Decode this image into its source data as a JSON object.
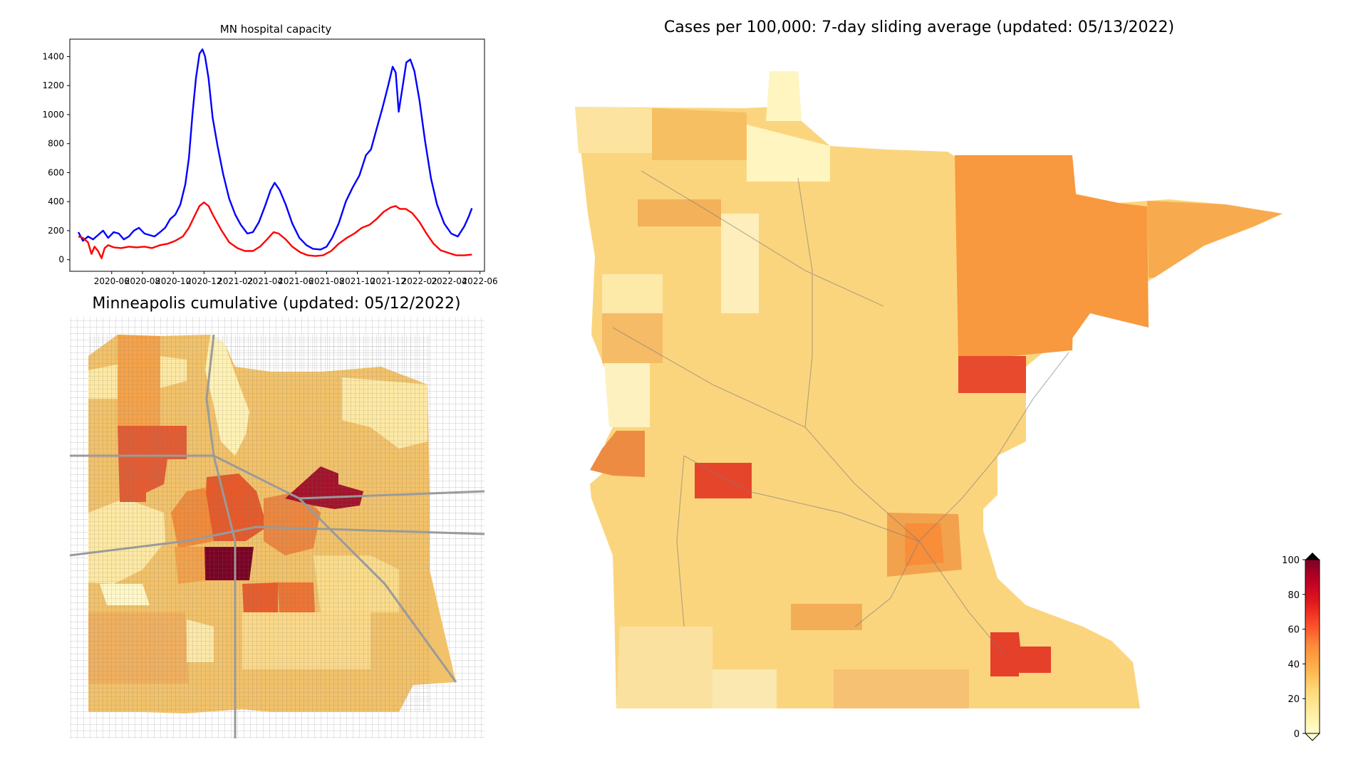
{
  "figure": {
    "hospital_chart": {
      "title": "MN hospital capacity",
      "chart_data": {
        "type": "line",
        "title": "MN hospital capacity",
        "xlabel": "",
        "ylabel": "",
        "ylim": [
          -80,
          1520
        ],
        "yticks": [
          0,
          200,
          400,
          600,
          800,
          1000,
          1200,
          1400
        ],
        "xlim": [
          "2020-03-10",
          "2022-06-10"
        ],
        "xticks": [
          "2020-06",
          "2020-08",
          "2020-10",
          "2020-12",
          "2021-02",
          "2021-04",
          "2021-06",
          "2021-08",
          "2021-10",
          "2021-12",
          "2022-02",
          "2022-04",
          "2022-06"
        ],
        "grid": false,
        "legend": "none",
        "series": [
          {
            "color": "#0000ff",
            "points": [
              [
                "2020-03-27",
                190
              ],
              [
                "2020-04-05",
                130
              ],
              [
                "2020-04-15",
                160
              ],
              [
                "2020-04-25",
                140
              ],
              [
                "2020-05-05",
                170
              ],
              [
                "2020-05-15",
                200
              ],
              [
                "2020-05-25",
                150
              ],
              [
                "2020-06-05",
                190
              ],
              [
                "2020-06-15",
                180
              ],
              [
                "2020-06-25",
                140
              ],
              [
                "2020-07-05",
                160
              ],
              [
                "2020-07-15",
                200
              ],
              [
                "2020-07-25",
                220
              ],
              [
                "2020-08-05",
                180
              ],
              [
                "2020-08-15",
                170
              ],
              [
                "2020-08-25",
                160
              ],
              [
                "2020-09-05",
                190
              ],
              [
                "2020-09-15",
                220
              ],
              [
                "2020-09-25",
                280
              ],
              [
                "2020-10-05",
                310
              ],
              [
                "2020-10-15",
                380
              ],
              [
                "2020-10-25",
                520
              ],
              [
                "2020-11-01",
                700
              ],
              [
                "2020-11-08",
                1000
              ],
              [
                "2020-11-15",
                1250
              ],
              [
                "2020-11-22",
                1420
              ],
              [
                "2020-11-28",
                1450
              ],
              [
                "2020-12-03",
                1400
              ],
              [
                "2020-12-10",
                1250
              ],
              [
                "2020-12-18",
                980
              ],
              [
                "2020-12-28",
                780
              ],
              [
                "2021-01-08",
                590
              ],
              [
                "2021-01-20",
                420
              ],
              [
                "2021-02-01",
                310
              ],
              [
                "2021-02-12",
                240
              ],
              [
                "2021-02-25",
                180
              ],
              [
                "2021-03-08",
                190
              ],
              [
                "2021-03-20",
                260
              ],
              [
                "2021-04-01",
                370
              ],
              [
                "2021-04-12",
                480
              ],
              [
                "2021-04-20",
                530
              ],
              [
                "2021-04-30",
                480
              ],
              [
                "2021-05-12",
                380
              ],
              [
                "2021-05-25",
                250
              ],
              [
                "2021-06-08",
                150
              ],
              [
                "2021-06-22",
                100
              ],
              [
                "2021-07-05",
                75
              ],
              [
                "2021-07-20",
                70
              ],
              [
                "2021-08-01",
                90
              ],
              [
                "2021-08-12",
                150
              ],
              [
                "2021-08-25",
                250
              ],
              [
                "2021-09-08",
                400
              ],
              [
                "2021-09-22",
                500
              ],
              [
                "2021-10-05",
                580
              ],
              [
                "2021-10-18",
                720
              ],
              [
                "2021-10-28",
                760
              ],
              [
                "2021-11-08",
                900
              ],
              [
                "2021-11-20",
                1050
              ],
              [
                "2021-12-01",
                1200
              ],
              [
                "2021-12-10",
                1330
              ],
              [
                "2021-12-16",
                1290
              ],
              [
                "2021-12-22",
                1020
              ],
              [
                "2021-12-30",
                1200
              ],
              [
                "2022-01-06",
                1360
              ],
              [
                "2022-01-14",
                1380
              ],
              [
                "2022-01-22",
                1300
              ],
              [
                "2022-02-01",
                1100
              ],
              [
                "2022-02-12",
                820
              ],
              [
                "2022-02-24",
                560
              ],
              [
                "2022-03-08",
                380
              ],
              [
                "2022-03-22",
                250
              ],
              [
                "2022-04-05",
                180
              ],
              [
                "2022-04-18",
                160
              ],
              [
                "2022-05-01",
                230
              ],
              [
                "2022-05-10",
                300
              ],
              [
                "2022-05-16",
                355
              ]
            ]
          },
          {
            "color": "#ff0000",
            "points": [
              [
                "2020-03-27",
                160
              ],
              [
                "2020-04-05",
                150
              ],
              [
                "2020-04-15",
                120
              ],
              [
                "2020-04-22",
                40
              ],
              [
                "2020-04-28",
                90
              ],
              [
                "2020-05-05",
                60
              ],
              [
                "2020-05-12",
                10
              ],
              [
                "2020-05-18",
                80
              ],
              [
                "2020-05-25",
                100
              ],
              [
                "2020-06-05",
                85
              ],
              [
                "2020-06-20",
                80
              ],
              [
                "2020-07-05",
                90
              ],
              [
                "2020-07-20",
                85
              ],
              [
                "2020-08-05",
                90
              ],
              [
                "2020-08-20",
                80
              ],
              [
                "2020-09-05",
                100
              ],
              [
                "2020-09-20",
                110
              ],
              [
                "2020-10-05",
                130
              ],
              [
                "2020-10-20",
                160
              ],
              [
                "2020-11-01",
                220
              ],
              [
                "2020-11-12",
                300
              ],
              [
                "2020-11-22",
                370
              ],
              [
                "2020-12-01",
                395
              ],
              [
                "2020-12-10",
                370
              ],
              [
                "2020-12-20",
                300
              ],
              [
                "2021-01-05",
                200
              ],
              [
                "2021-01-20",
                120
              ],
              [
                "2021-02-05",
                80
              ],
              [
                "2021-02-20",
                60
              ],
              [
                "2021-03-08",
                60
              ],
              [
                "2021-03-22",
                90
              ],
              [
                "2021-04-05",
                140
              ],
              [
                "2021-04-18",
                190
              ],
              [
                "2021-04-28",
                180
              ],
              [
                "2021-05-12",
                140
              ],
              [
                "2021-05-25",
                90
              ],
              [
                "2021-06-10",
                50
              ],
              [
                "2021-06-25",
                30
              ],
              [
                "2021-07-10",
                25
              ],
              [
                "2021-07-25",
                30
              ],
              [
                "2021-08-10",
                60
              ],
              [
                "2021-08-25",
                110
              ],
              [
                "2021-09-10",
                150
              ],
              [
                "2021-09-25",
                180
              ],
              [
                "2021-10-10",
                220
              ],
              [
                "2021-10-25",
                240
              ],
              [
                "2021-11-08",
                280
              ],
              [
                "2021-11-22",
                330
              ],
              [
                "2021-12-06",
                360
              ],
              [
                "2021-12-16",
                370
              ],
              [
                "2021-12-24",
                350
              ],
              [
                "2022-01-05",
                350
              ],
              [
                "2022-01-18",
                320
              ],
              [
                "2022-02-01",
                260
              ],
              [
                "2022-02-15",
                180
              ],
              [
                "2022-03-01",
                110
              ],
              [
                "2022-03-15",
                65
              ],
              [
                "2022-04-01",
                45
              ],
              [
                "2022-04-15",
                30
              ],
              [
                "2022-05-01",
                30
              ],
              [
                "2022-05-16",
                35
              ]
            ]
          }
        ]
      }
    },
    "minneapolis_map": {
      "title": "Minneapolis cumulative (updated: 05/12/2022)"
    },
    "minnesota_map": {
      "title": "Cases per 100,000: 7-day sliding average (updated: 05/13/2022)"
    },
    "colorbar": {
      "range": [
        0,
        100
      ],
      "ticks": [
        0,
        20,
        40,
        60,
        80,
        100
      ],
      "extend": "both",
      "colors": [
        "#ffffcc",
        "#ffeda0",
        "#fed976",
        "#feb24c",
        "#fd8d3c",
        "#fc4e2a",
        "#e31a1c",
        "#bd0026",
        "#800026"
      ],
      "under_color": "#ffffcc",
      "over_color": "#000000"
    }
  }
}
